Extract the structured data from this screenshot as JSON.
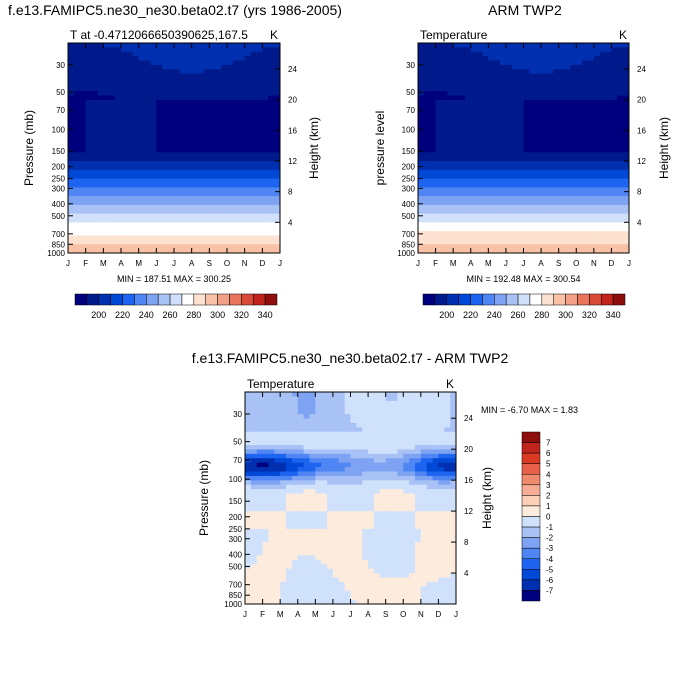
{
  "chart_data": [
    {
      "type": "heatmap",
      "title": "f.e13.FAMIPC5.ne30_ne30.beta02.t7 (yrs 1986-2005)",
      "left_label": "T at -0.4712066650390625,167.5",
      "right_label": "K",
      "ylabel": "Pressure (mb)",
      "ylabel_right": "Height (km)",
      "x_ticks": [
        "J",
        "F",
        "M",
        "A",
        "M",
        "J",
        "J",
        "A",
        "S",
        "O",
        "N",
        "D",
        "J"
      ],
      "p_ticks": [
        "30",
        "50",
        "70",
        "100",
        "150",
        "200",
        "250",
        "300",
        "400",
        "500",
        "700",
        "850",
        "1000"
      ],
      "p_values": [
        30,
        50,
        70,
        100,
        150,
        200,
        250,
        300,
        400,
        500,
        700,
        850,
        1000
      ],
      "height_ticks": [
        "4",
        "8",
        "12",
        "16",
        "20",
        "24"
      ],
      "height_values": [
        4,
        8,
        12,
        16,
        20,
        24
      ],
      "p_range": [
        20,
        1000
      ],
      "stats": "MIN = 187.51 MAX = 300.25",
      "colorbar_labels": [
        "200",
        "220",
        "240",
        "260",
        "280",
        "300",
        "320",
        "340"
      ],
      "colorbar_levels": [
        190,
        200,
        210,
        220,
        230,
        240,
        250,
        260,
        270,
        280,
        290,
        300,
        310,
        320,
        330,
        340,
        350
      ]
    },
    {
      "type": "heatmap",
      "title": "ARM TWP2",
      "left_label": "Temperature",
      "right_label": "K",
      "ylabel": "pressure level",
      "ylabel_right": "Height (km)",
      "x_ticks": [
        "J",
        "F",
        "M",
        "A",
        "M",
        "J",
        "J",
        "A",
        "S",
        "O",
        "N",
        "D",
        "J"
      ],
      "p_ticks": [
        "30",
        "50",
        "70",
        "100",
        "150",
        "200",
        "250",
        "300",
        "400",
        "500",
        "700",
        "850",
        "1000"
      ],
      "p_values": [
        30,
        50,
        70,
        100,
        150,
        200,
        250,
        300,
        400,
        500,
        700,
        850,
        1000
      ],
      "height_ticks": [
        "4",
        "8",
        "12",
        "16",
        "20",
        "24"
      ],
      "height_values": [
        4,
        8,
        12,
        16,
        20,
        24
      ],
      "p_range": [
        20,
        1000
      ],
      "stats": "MIN = 192.48 MAX = 300.54",
      "colorbar_labels": [
        "200",
        "220",
        "240",
        "260",
        "280",
        "300",
        "320",
        "340"
      ],
      "colorbar_levels": [
        190,
        200,
        210,
        220,
        230,
        240,
        250,
        260,
        270,
        280,
        290,
        300,
        310,
        320,
        330,
        340,
        350
      ]
    },
    {
      "type": "heatmap",
      "title": "f.e13.FAMIPC5.ne30_ne30.beta02.t7 - ARM TWP2",
      "left_label": "Temperature",
      "right_label": "K",
      "ylabel": "Pressure (mb)",
      "ylabel_right": "Height (km)",
      "x_ticks": [
        "J",
        "F",
        "M",
        "A",
        "M",
        "J",
        "J",
        "A",
        "S",
        "O",
        "N",
        "D",
        "J"
      ],
      "p_ticks": [
        "30",
        "50",
        "70",
        "100",
        "150",
        "200",
        "250",
        "300",
        "400",
        "500",
        "700",
        "850",
        "1000"
      ],
      "p_values": [
        30,
        50,
        70,
        100,
        150,
        200,
        250,
        300,
        400,
        500,
        700,
        850,
        1000
      ],
      "height_ticks": [
        "4",
        "8",
        "12",
        "16",
        "20",
        "24"
      ],
      "height_values": [
        4,
        8,
        12,
        16,
        20,
        24
      ],
      "p_range": [
        20,
        1000
      ],
      "stats": "MIN = -6.70 MAX = 1.83",
      "colorbar_labels": [
        "7",
        "6",
        "5",
        "4",
        "3",
        "2",
        "1",
        "0",
        "-1",
        "-2",
        "-3",
        "-4",
        "-5",
        "-6",
        "-7"
      ],
      "colorbar_levels": [
        -7,
        -6,
        -5,
        -4,
        -3,
        -2,
        -1,
        0,
        1,
        2,
        3,
        4,
        5,
        6,
        7
      ]
    }
  ],
  "colors": {
    "abs_palette": [
      "#00007f",
      "#001a8c",
      "#0030b0",
      "#0048d6",
      "#1d64f0",
      "#4f86f3",
      "#7ea3f3",
      "#a9c2f6",
      "#d0dffa",
      "#ffffff",
      "#fde2d2",
      "#f9c2a6",
      "#f2a086",
      "#e8755c",
      "#d84a35",
      "#c0241c",
      "#8e0e0e"
    ],
    "diff_palette": [
      "#00007f",
      "#0030b0",
      "#0048d6",
      "#1d64f0",
      "#4f86f3",
      "#7ea3f3",
      "#a9c2f6",
      "#d0e2fb",
      "#fdebdd",
      "#fbcfb8",
      "#f6ad93",
      "#f08a6c",
      "#e8604a",
      "#db3a24",
      "#c0241c",
      "#8e0e0e"
    ]
  }
}
